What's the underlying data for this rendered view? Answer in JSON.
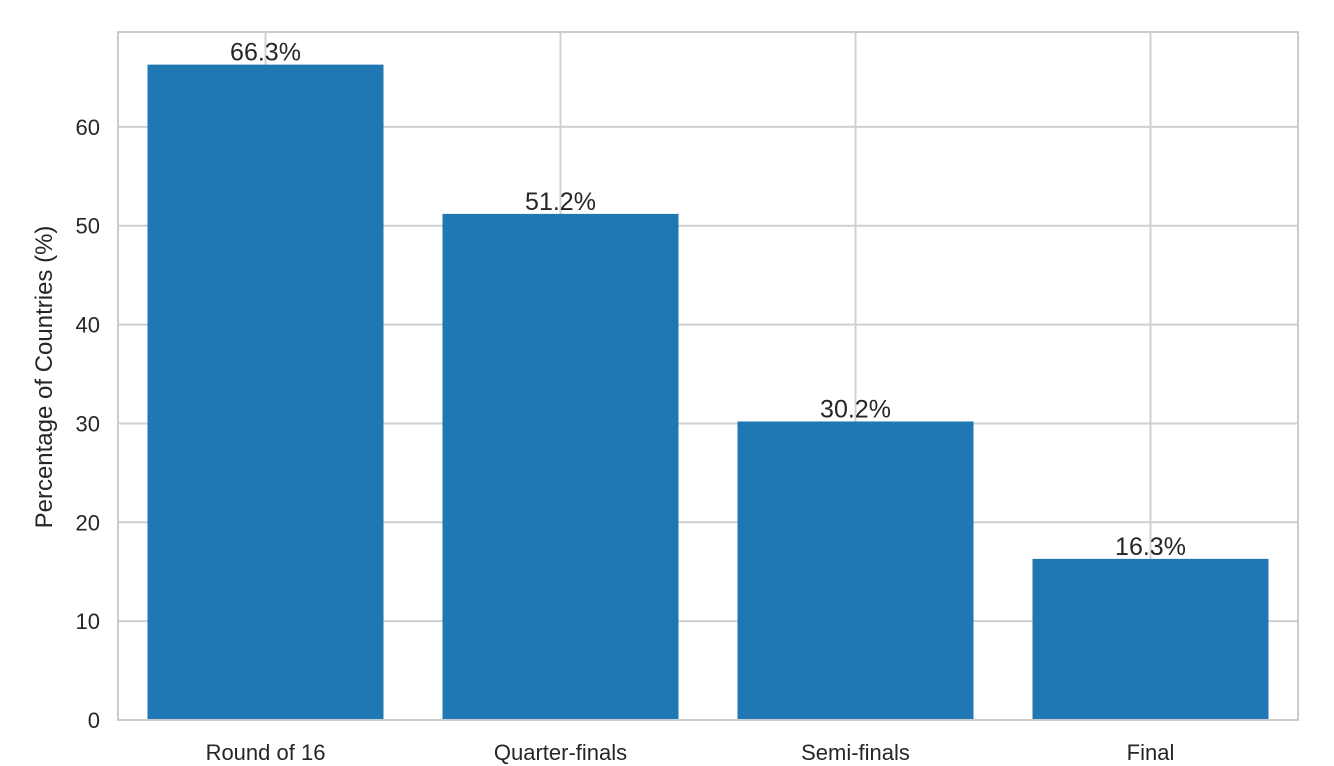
{
  "chart_data": {
    "type": "bar",
    "title": "",
    "xlabel": "",
    "ylabel": "Percentage of Countries (%)",
    "categories": [
      "Round of 16",
      "Quarter-finals",
      "Semi-finals",
      "Final"
    ],
    "values": [
      66.3,
      51.2,
      30.2,
      16.3
    ],
    "data_labels": [
      "66.3%",
      "51.2%",
      "30.2%",
      "16.3%"
    ],
    "yticks": [
      0,
      10,
      20,
      30,
      40,
      50,
      60
    ],
    "ylim": [
      0,
      69.6
    ],
    "grid": true,
    "bar_color": "#1f77b4",
    "grid_color": "#d0d0d0",
    "axis_color": "#cccccc"
  }
}
